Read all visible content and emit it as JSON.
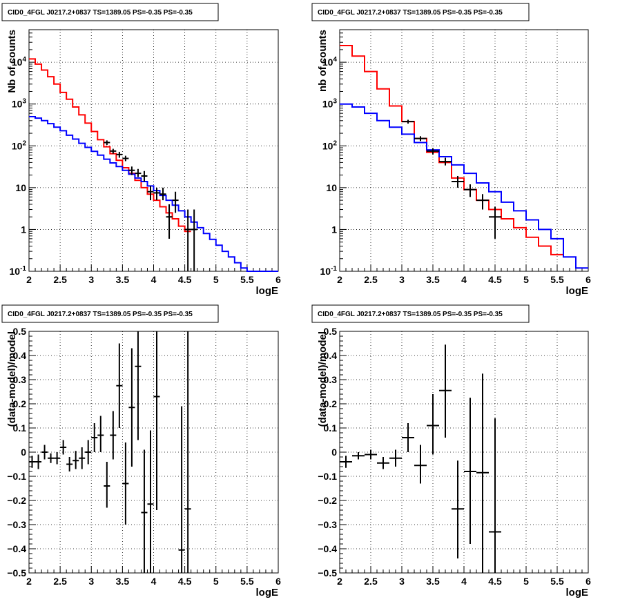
{
  "chart_data": [
    {
      "type": "line",
      "title": "CID0_4FGL J0217.2+0837 TS=1389.05 PS=-0.35 PS=-0.35",
      "xlabel": "logE",
      "ylabel": "Nb of counts",
      "xlim": [
        2,
        6
      ],
      "ylim": [
        0.1,
        60000
      ],
      "yscale": "log",
      "grid": true,
      "x_ticks": [
        "2",
        "2.5",
        "3",
        "3.5",
        "4",
        "4.5",
        "5",
        "5.5",
        "6"
      ],
      "y_ticks": [
        "10^-1",
        "1",
        "10",
        "10^2",
        "10^3",
        "10^4"
      ],
      "series": [
        {
          "color": "#ff0000",
          "bin_edges": [
            2.0,
            2.1,
            2.2,
            2.3,
            2.4,
            2.5,
            2.6,
            2.7,
            2.8,
            2.9,
            3.0,
            3.1,
            3.2,
            3.3,
            3.4,
            3.5,
            3.6,
            3.7,
            3.8,
            3.9,
            4.0,
            4.1,
            4.2,
            4.3,
            4.4,
            4.5,
            4.6
          ],
          "values": [
            12000,
            9000,
            6500,
            4500,
            3000,
            1900,
            1300,
            850,
            550,
            350,
            220,
            140,
            95,
            65,
            45,
            30,
            22,
            15,
            10,
            7,
            5,
            3.5,
            2.5,
            1.8,
            1.2,
            0.9
          ]
        },
        {
          "color": "#0000ff",
          "bin_edges": [
            2.0,
            2.1,
            2.2,
            2.3,
            2.4,
            2.5,
            2.6,
            2.7,
            2.8,
            2.9,
            3.0,
            3.1,
            3.2,
            3.3,
            3.4,
            3.5,
            3.6,
            3.7,
            3.8,
            3.9,
            4.0,
            4.1,
            4.2,
            4.3,
            4.4,
            4.5,
            4.6,
            4.7,
            4.8,
            4.9,
            5.0,
            5.1,
            5.2,
            5.3,
            5.4,
            5.5,
            5.6,
            5.7,
            5.8,
            5.9,
            6.0
          ],
          "values": [
            500,
            460,
            400,
            340,
            280,
            230,
            180,
            145,
            115,
            92,
            74,
            60,
            48,
            39,
            32,
            26,
            21,
            17,
            14,
            11,
            8.5,
            6.5,
            5,
            3.8,
            2.8,
            2,
            1.5,
            1.1,
            0.8,
            0.58,
            0.42,
            0.3,
            0.22,
            0.16,
            0.12,
            0.1,
            0.1,
            0.1,
            0.1,
            0.1
          ]
        }
      ],
      "points": [
        {
          "x": 3.25,
          "y": 120,
          "xerr": 0.05,
          "ylo": 105,
          "yhi": 135
        },
        {
          "x": 3.35,
          "y": 75,
          "xerr": 0.05,
          "ylo": 65,
          "yhi": 85
        },
        {
          "x": 3.45,
          "y": 62,
          "xerr": 0.05,
          "ylo": 52,
          "yhi": 72
        },
        {
          "x": 3.55,
          "y": 50,
          "xerr": 0.05,
          "ylo": 43,
          "yhi": 58
        },
        {
          "x": 3.65,
          "y": 26,
          "xerr": 0.05,
          "ylo": 20,
          "yhi": 32
        },
        {
          "x": 3.75,
          "y": 22,
          "xerr": 0.05,
          "ylo": 18,
          "yhi": 28
        },
        {
          "x": 3.85,
          "y": 19,
          "xerr": 0.05,
          "ylo": 14,
          "yhi": 25
        },
        {
          "x": 3.95,
          "y": 8,
          "xerr": 0.05,
          "ylo": 5,
          "yhi": 11
        },
        {
          "x": 4.05,
          "y": 7.5,
          "xerr": 0.05,
          "ylo": 5,
          "yhi": 10
        },
        {
          "x": 4.15,
          "y": 7,
          "xerr": 0.05,
          "ylo": 5,
          "yhi": 10
        },
        {
          "x": 4.25,
          "y": 2,
          "xerr": 0.05,
          "ylo": 0.6,
          "yhi": 4
        },
        {
          "x": 4.35,
          "y": 5,
          "xerr": 0.05,
          "ylo": 2.5,
          "yhi": 8
        },
        {
          "x": 4.55,
          "y": 1,
          "xerr": 0.05,
          "ylo": 0.1,
          "yhi": 3
        },
        {
          "x": 4.65,
          "y": 1,
          "xerr": 0.05,
          "ylo": 0.1,
          "yhi": 3
        }
      ]
    },
    {
      "type": "line",
      "title": "CID0_4FGL J0217.2+0837 TS=1389.05 PS=-0.35 PS=-0.35",
      "xlabel": "logE",
      "ylabel": "nb of counts",
      "xlim": [
        2,
        6
      ],
      "ylim": [
        0.1,
        60000
      ],
      "yscale": "log",
      "grid": true,
      "x_ticks": [
        "2",
        "2.5",
        "3",
        "3.5",
        "4",
        "4.5",
        "5",
        "5.5",
        "6"
      ],
      "y_ticks": [
        "10^-1",
        "1",
        "10",
        "10^2",
        "10^3",
        "10^4"
      ],
      "series": [
        {
          "color": "#ff0000",
          "bin_edges": [
            2.0,
            2.2,
            2.4,
            2.6,
            2.8,
            3.0,
            3.2,
            3.4,
            3.6,
            3.8,
            4.0,
            4.2,
            4.4,
            4.6,
            4.8,
            5.0,
            5.2,
            5.4,
            5.6
          ],
          "values": [
            25000,
            14000,
            6000,
            2300,
            900,
            380,
            150,
            70,
            40,
            17,
            9,
            5,
            3,
            1.8,
            1.1,
            0.65,
            0.4,
            0.25
          ]
        },
        {
          "color": "#0000ff",
          "bin_edges": [
            2.0,
            2.2,
            2.4,
            2.6,
            2.8,
            3.0,
            3.2,
            3.4,
            3.6,
            3.8,
            4.0,
            4.2,
            4.4,
            4.6,
            4.8,
            5.0,
            5.2,
            5.4,
            5.6,
            5.8,
            6.0
          ],
          "values": [
            1000,
            850,
            600,
            400,
            280,
            190,
            120,
            80,
            55,
            35,
            22,
            13,
            8,
            4.5,
            2.8,
            1.7,
            1.0,
            0.6,
            0.22,
            0.12
          ]
        }
      ],
      "points": [
        {
          "x": 3.1,
          "y": 380,
          "xerr": 0.1,
          "ylo": 340,
          "yhi": 420
        },
        {
          "x": 3.3,
          "y": 150,
          "xerr": 0.1,
          "ylo": 130,
          "yhi": 170
        },
        {
          "x": 3.5,
          "y": 75,
          "xerr": 0.1,
          "ylo": 62,
          "yhi": 88
        },
        {
          "x": 3.7,
          "y": 42,
          "xerr": 0.1,
          "ylo": 34,
          "yhi": 52
        },
        {
          "x": 3.9,
          "y": 14,
          "xerr": 0.1,
          "ylo": 10,
          "yhi": 19
        },
        {
          "x": 4.1,
          "y": 9,
          "xerr": 0.1,
          "ylo": 6,
          "yhi": 12
        },
        {
          "x": 4.3,
          "y": 5,
          "xerr": 0.1,
          "ylo": 3,
          "yhi": 7
        },
        {
          "x": 4.5,
          "y": 2,
          "xerr": 0.1,
          "ylo": 0.6,
          "yhi": 3.5
        }
      ]
    },
    {
      "type": "scatter",
      "title": "CID0_4FGL J0217.2+0837 TS=1389.05 PS=-0.35 PS=-0.35",
      "xlabel": "logE",
      "ylabel": "(data-model)/model",
      "xlim": [
        2,
        6
      ],
      "ylim": [
        -0.5,
        0.5
      ],
      "grid": true,
      "x_ticks": [
        "2",
        "2.5",
        "3",
        "3.5",
        "4",
        "4.5",
        "5",
        "5.5",
        "6"
      ],
      "y_ticks": [
        "−0.5",
        "−0.4",
        "−0.3",
        "−0.2",
        "−0.1",
        "0",
        "0.1",
        "0.2",
        "0.3",
        "0.4",
        "0.5"
      ],
      "points": [
        {
          "x": 2.05,
          "y": -0.04,
          "xerr": 0.05,
          "ylo": -0.065,
          "yhi": -0.015
        },
        {
          "x": 2.15,
          "y": -0.04,
          "xerr": 0.05,
          "ylo": -0.07,
          "yhi": -0.01
        },
        {
          "x": 2.25,
          "y": 0,
          "xerr": 0.05,
          "ylo": -0.03,
          "yhi": 0.03
        },
        {
          "x": 2.35,
          "y": -0.025,
          "xerr": 0.05,
          "ylo": -0.045,
          "yhi": -0.005
        },
        {
          "x": 2.45,
          "y": -0.025,
          "xerr": 0.05,
          "ylo": -0.05,
          "yhi": 0
        },
        {
          "x": 2.55,
          "y": 0.02,
          "xerr": 0.05,
          "ylo": -0.01,
          "yhi": 0.05
        },
        {
          "x": 2.65,
          "y": -0.05,
          "xerr": 0.05,
          "ylo": -0.08,
          "yhi": -0.02
        },
        {
          "x": 2.75,
          "y": -0.035,
          "xerr": 0.05,
          "ylo": -0.07,
          "yhi": 0.005
        },
        {
          "x": 2.85,
          "y": -0.025,
          "xerr": 0.05,
          "ylo": -0.07,
          "yhi": 0.02
        },
        {
          "x": 2.95,
          "y": 0,
          "xerr": 0.05,
          "ylo": -0.05,
          "yhi": 0.05
        },
        {
          "x": 3.05,
          "y": 0.06,
          "xerr": 0.05,
          "ylo": 0,
          "yhi": 0.12
        },
        {
          "x": 3.15,
          "y": 0.07,
          "xerr": 0.05,
          "ylo": 0,
          "yhi": 0.15
        },
        {
          "x": 3.25,
          "y": -0.14,
          "xerr": 0.05,
          "ylo": -0.23,
          "yhi": -0.04
        },
        {
          "x": 3.35,
          "y": 0.07,
          "xerr": 0.05,
          "ylo": -0.03,
          "yhi": 0.17
        },
        {
          "x": 3.45,
          "y": 0.275,
          "xerr": 0.05,
          "ylo": 0.1,
          "yhi": 0.45
        },
        {
          "x": 3.55,
          "y": -0.13,
          "xerr": 0.05,
          "ylo": -0.3,
          "yhi": 0.04
        },
        {
          "x": 3.65,
          "y": 0.185,
          "xerr": 0.05,
          "ylo": -0.06,
          "yhi": 0.43
        },
        {
          "x": 3.75,
          "y": 0.355,
          "xerr": 0.05,
          "ylo": 0.05,
          "yhi": 0.5
        },
        {
          "x": 3.85,
          "y": -0.25,
          "xerr": 0.05,
          "ylo": -0.5,
          "yhi": 0.01
        },
        {
          "x": 3.95,
          "y": -0.215,
          "xerr": 0.05,
          "ylo": -0.5,
          "yhi": 0.09
        },
        {
          "x": 4.05,
          "y": 0.23,
          "xerr": 0.05,
          "ylo": -0.24,
          "yhi": 0.5
        },
        {
          "x": 4.45,
          "y": -0.405,
          "xerr": 0.05,
          "ylo": -0.5,
          "yhi": 0.19
        },
        {
          "x": 4.55,
          "y": -0.235,
          "xerr": 0.05,
          "ylo": -0.5,
          "yhi": 0.5
        }
      ]
    },
    {
      "type": "scatter",
      "title": "CID0_4FGL J0217.2+0837 TS=1389.05 PS=-0.35 PS=-0.35",
      "xlabel": "logE",
      "ylabel": "(data-model)/model",
      "xlim": [
        2,
        6
      ],
      "ylim": [
        -0.5,
        0.5
      ],
      "grid": true,
      "x_ticks": [
        "2",
        "2.5",
        "3",
        "3.5",
        "4",
        "4.5",
        "5",
        "5.5",
        "6"
      ],
      "y_ticks": [
        "−0.5",
        "−0.4",
        "−0.3",
        "−0.2",
        "−0.1",
        "0",
        "0.1",
        "0.2",
        "0.3",
        "0.4",
        "0.5"
      ],
      "points": [
        {
          "x": 2.1,
          "y": -0.04,
          "xerr": 0.1,
          "ylo": -0.065,
          "yhi": -0.015
        },
        {
          "x": 2.3,
          "y": -0.015,
          "xerr": 0.1,
          "ylo": -0.03,
          "yhi": 0
        },
        {
          "x": 2.5,
          "y": -0.01,
          "xerr": 0.1,
          "ylo": -0.03,
          "yhi": 0.01
        },
        {
          "x": 2.7,
          "y": -0.045,
          "xerr": 0.1,
          "ylo": -0.07,
          "yhi": -0.02
        },
        {
          "x": 2.9,
          "y": -0.025,
          "xerr": 0.1,
          "ylo": -0.06,
          "yhi": 0.01
        },
        {
          "x": 3.1,
          "y": 0.06,
          "xerr": 0.1,
          "ylo": 0,
          "yhi": 0.12
        },
        {
          "x": 3.3,
          "y": -0.055,
          "xerr": 0.1,
          "ylo": -0.13,
          "yhi": 0.03
        },
        {
          "x": 3.5,
          "y": 0.11,
          "xerr": 0.1,
          "ylo": -0.01,
          "yhi": 0.24
        },
        {
          "x": 3.7,
          "y": 0.255,
          "xerr": 0.1,
          "ylo": 0.06,
          "yhi": 0.445
        },
        {
          "x": 3.9,
          "y": -0.235,
          "xerr": 0.1,
          "ylo": -0.44,
          "yhi": -0.035
        },
        {
          "x": 4.1,
          "y": -0.08,
          "xerr": 0.1,
          "ylo": -0.38,
          "yhi": 0.225
        },
        {
          "x": 4.3,
          "y": -0.085,
          "xerr": 0.1,
          "ylo": -0.5,
          "yhi": 0.325
        },
        {
          "x": 4.5,
          "y": -0.33,
          "xerr": 0.1,
          "ylo": -0.5,
          "yhi": 0.14
        }
      ]
    }
  ]
}
